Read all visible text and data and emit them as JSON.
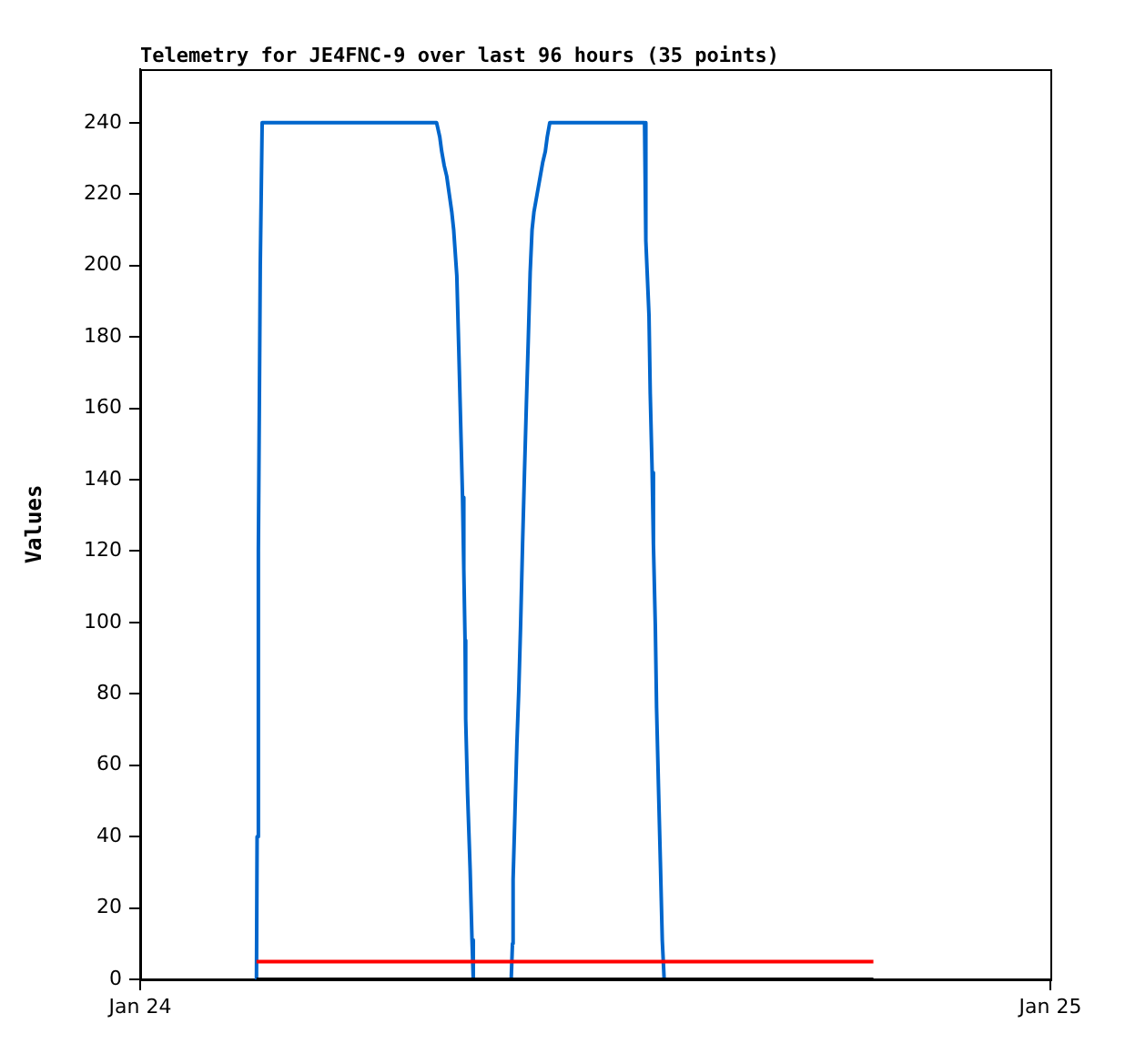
{
  "chart_data": {
    "type": "line",
    "title": "Telemetry for JE4FNC-9 over last 96 hours (35 points)",
    "ylabel": "Values",
    "xlim": [
      "--01-24",
      "--01-25"
    ],
    "xticks": [
      {
        "value": "--01-24",
        "label": "Jan 24"
      },
      {
        "value": "--01-25",
        "label": "Jan 25"
      }
    ],
    "ylim": [
      0,
      255
    ],
    "yticks": [
      0,
      20,
      40,
      60,
      80,
      100,
      120,
      140,
      160,
      180,
      200,
      220,
      240
    ],
    "grid": false,
    "legend": false,
    "marker": "none",
    "line_style": "solid",
    "series": [
      {
        "color": "#0066cc",
        "x": [
          "--01-24T03:04",
          "--01-24T03:05",
          "--01-24T03:07",
          "--01-24T03:10",
          "--01-24T03:13",
          "--01-24T07:49",
          "--01-24T07:54",
          "--01-24T07:57",
          "--01-24T08:01",
          "--01-24T08:05",
          "--01-24T08:09",
          "--01-24T08:13",
          "--01-24T08:16",
          "--01-24T08:18",
          "--01-24T08:21",
          "--01-24T08:24",
          "--01-24T08:27",
          "--01-24T08:30",
          "--01-24T08:32",
          "--01-24T08:34",
          "--01-24T08:35",
          "--01-24T08:38",
          "--01-24T08:42",
          "--01-24T08:45",
          "--01-24T08:47",
          "--01-24T09:47",
          "--01-24T09:49",
          "--01-24T09:50",
          "--01-24T09:53",
          "--01-24T09:56",
          "--01-24T09:59",
          "--01-24T10:02",
          "--01-24T10:05",
          "--01-24T10:08",
          "--01-24T10:11",
          "--01-24T10:14",
          "--01-24T10:17",
          "--01-24T10:20",
          "--01-24T10:23",
          "--01-24T10:28",
          "--01-24T10:33",
          "--01-24T10:37",
          "--01-24T10:41",
          "--01-24T10:44",
          "--01-24T10:48",
          "--01-24T13:18",
          "--01-24T13:20",
          "--01-24T13:25",
          "--01-24T13:27",
          "--01-24T13:30",
          "--01-24T13:32",
          "--01-24T13:35",
          "--01-24T13:37",
          "--01-24T13:40",
          "--01-24T13:43",
          "--01-24T13:46",
          "--01-24T13:49"
        ],
        "values": [
          0,
          40,
          120,
          200,
          240,
          240,
          236,
          232,
          228,
          225,
          220,
          215,
          210,
          210,
          197,
          177,
          156,
          135,
          115,
          95,
          73,
          52,
          31,
          11,
          0,
          0,
          10,
          28,
          47,
          66,
          81,
          100,
          122,
          142,
          161,
          179,
          198,
          210,
          215,
          220,
          225,
          229,
          232,
          236,
          240,
          240,
          207,
          186,
          164,
          142,
          122,
          99,
          76,
          54,
          33,
          11,
          0
        ]
      },
      {
        "color": "#ff0000",
        "x": [
          "--01-24T03:04",
          "--01-24T19:20"
        ],
        "values": [
          5,
          5
        ]
      },
      {
        "color": "#000000",
        "x": [
          "--01-24T03:04",
          "--01-24T19:20"
        ],
        "values": [
          0,
          0
        ]
      }
    ]
  }
}
